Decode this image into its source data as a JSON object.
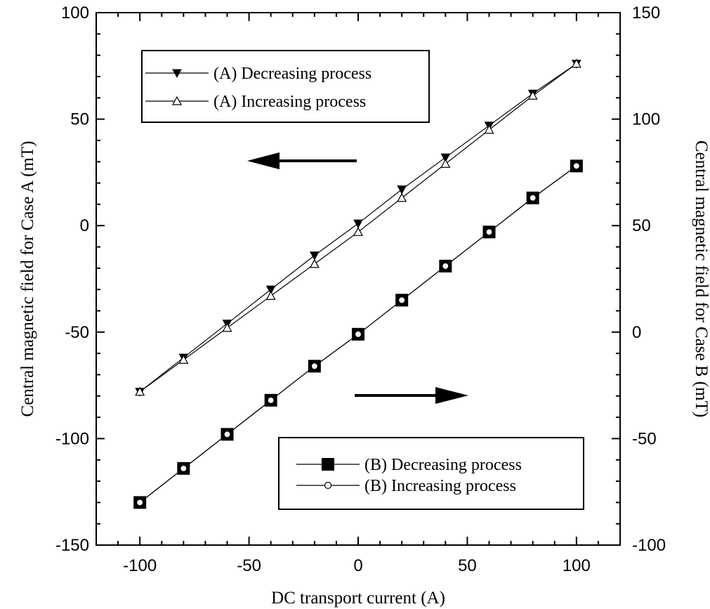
{
  "chart_data": {
    "type": "line",
    "xlabel": "DC transport current (A)",
    "ylabel_left": "Central magnetic field for Case A (mT)",
    "ylabel_right": "Central magnetic field for Case B (mT)",
    "xlim": [
      -120,
      120
    ],
    "ylim_left": [
      -150,
      100
    ],
    "ylim_right": [
      -100,
      150
    ],
    "grid": false,
    "x_ticks": [
      -100,
      -50,
      0,
      50,
      100
    ],
    "y_left_ticks": [
      -150,
      -100,
      -50,
      0,
      50,
      100
    ],
    "y_right_ticks": [
      -100,
      -50,
      0,
      50,
      100,
      150
    ],
    "x_tick_labels": [
      "-100",
      "-50",
      "0",
      "50",
      "100"
    ],
    "y_left_tick_labels": [
      "-150",
      "-100",
      "-50",
      "0",
      "50",
      "100"
    ],
    "y_right_tick_labels": [
      "-100",
      "-50",
      "0",
      "50",
      "100",
      "150"
    ],
    "series": [
      {
        "name": "(A) Decreasing process",
        "axis": "left",
        "marker": "filled-down-triangle",
        "x": [
          -100,
          -80,
          -60,
          -40,
          -20,
          0,
          20,
          40,
          60,
          80,
          100
        ],
        "y": [
          -78,
          -62,
          -46,
          -30,
          -14,
          1,
          17,
          32,
          47,
          62,
          76
        ]
      },
      {
        "name": "(A) Increasing process",
        "axis": "left",
        "marker": "open-up-triangle",
        "x": [
          -100,
          -80,
          -60,
          -40,
          -20,
          0,
          20,
          40,
          60,
          80,
          100
        ],
        "y": [
          -78,
          -63,
          -48,
          -33,
          -18,
          -3,
          13,
          29,
          45,
          61,
          76
        ]
      },
      {
        "name": "(B) Decreasing process",
        "axis": "right",
        "marker": "filled-square",
        "x": [
          -100,
          -80,
          -60,
          -40,
          -20,
          0,
          20,
          40,
          60,
          80,
          100
        ],
        "y": [
          -80,
          -64,
          -48,
          -32,
          -16,
          -1,
          15,
          31,
          47,
          63,
          78
        ]
      },
      {
        "name": "(B) Increasing process",
        "axis": "right",
        "marker": "open-circle",
        "x": [
          -100,
          -80,
          -60,
          -40,
          -20,
          0,
          20,
          40,
          60,
          80,
          100
        ],
        "y": [
          -80,
          -64,
          -48,
          -32,
          -16,
          -1,
          15,
          31,
          47,
          63,
          78
        ]
      }
    ],
    "legends": [
      {
        "placement": "top-left",
        "entries": [
          "(A) Decreasing process",
          "(A) Increasing process"
        ]
      },
      {
        "placement": "bottom-right",
        "entries": [
          "(B) Decreasing process",
          "(B) Increasing process"
        ]
      }
    ],
    "annotations": [
      {
        "type": "arrow",
        "direction": "left",
        "meaning": "Case A uses left axis"
      },
      {
        "type": "arrow",
        "direction": "right",
        "meaning": "Case B uses right axis"
      }
    ]
  }
}
